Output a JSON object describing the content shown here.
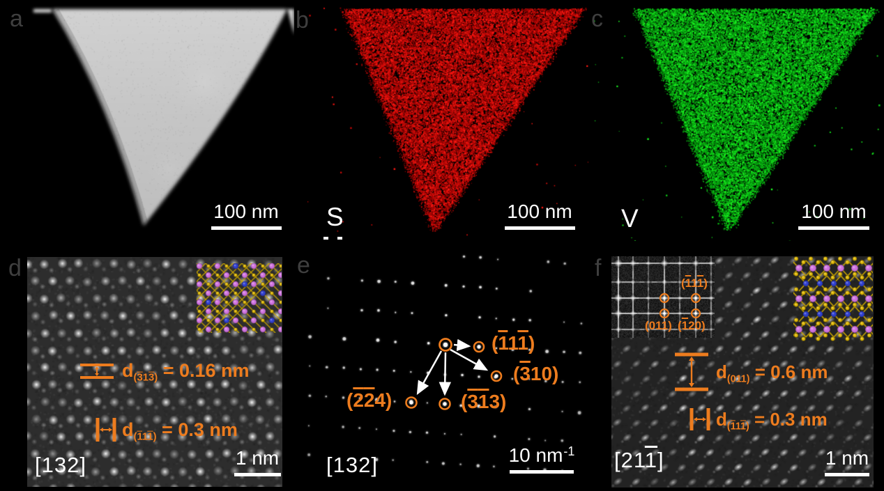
{
  "figure": {
    "panels": {
      "a": {
        "letter": "a",
        "scalebar": "100 nm"
      },
      "b": {
        "letter": "b",
        "element": "S",
        "scalebar": "100 nm"
      },
      "c": {
        "letter": "c",
        "element": "V",
        "scalebar": "100 nm"
      },
      "d": {
        "letter": "d",
        "zone_axis": "[132]",
        "scalebar": "1 nm",
        "annotations": [
          {
            "prefix": "d",
            "sub": "(~31~3)",
            "value": " = 0.16 nm"
          },
          {
            "prefix": "d",
            "sub": "(~11~1)",
            "value": " = 0.3 nm"
          }
        ]
      },
      "e": {
        "letter": "e",
        "zone_axis": "[132]",
        "scalebar_value": "10 nm",
        "scalebar_sup": "-1",
        "spot_labels": [
          {
            "label": "(~11~1)"
          },
          {
            "label": "(~310)"
          },
          {
            "label": "(~3~13)"
          },
          {
            "label": "(~2~24)"
          }
        ]
      },
      "f": {
        "letter": "f",
        "zone_axis": "[21~1]",
        "scalebar": "1 nm",
        "annotations": [
          {
            "prefix": "d",
            "sub": "(011)",
            "value": " = 0.6 nm"
          },
          {
            "prefix": "d",
            "sub": "(~11~1)",
            "value": " = 0.3 nm"
          }
        ],
        "fft_labels": [
          {
            "label": "(~11~1)"
          },
          {
            "label": "(011)"
          },
          {
            "label": "(~120)"
          }
        ]
      }
    },
    "colors": {
      "annotation_orange": "#ED7C1E",
      "sulfur_map_red": "#C40E0E",
      "vanadium_map_green": "#11B41C",
      "scalebar_white": "#FFFFFF",
      "atom_magenta": "#CF6FE0",
      "atom_yellow": "#E3BA00",
      "atom_blue": "#2A3BD0"
    }
  }
}
